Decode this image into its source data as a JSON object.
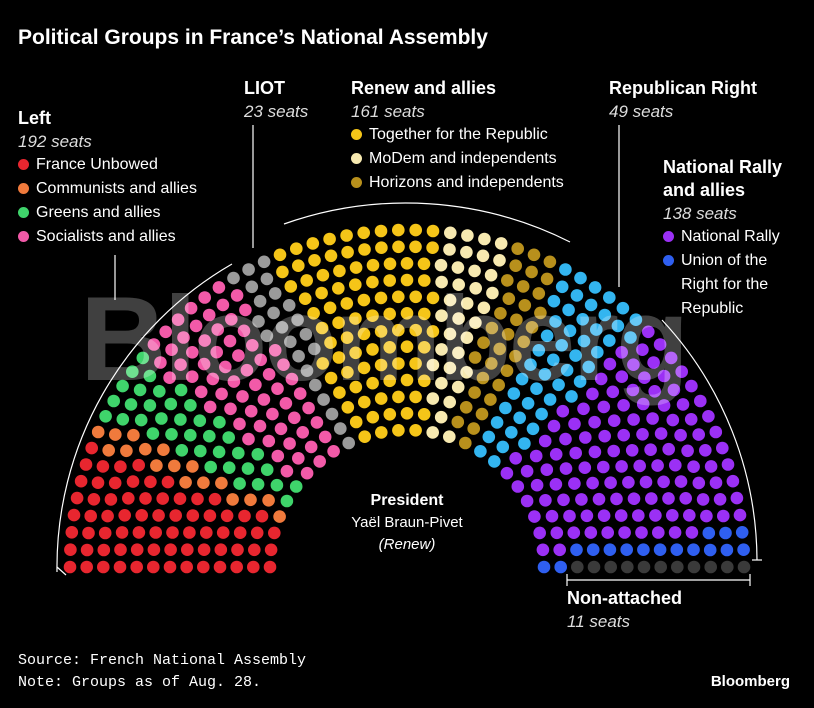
{
  "chart_data": {
    "type": "parliament",
    "title": "Political Groups in France’s National Assembly",
    "watermark": "Bloomberg",
    "groups": [
      {
        "name": "Left",
        "seats": 192,
        "seats_label": "192 seats",
        "subgroups": [
          {
            "name": "France Unbowed",
            "color": "#e8262f",
            "seats": 71
          },
          {
            "name": "Communists and allies",
            "color": "#f07a3c",
            "seats": 17
          },
          {
            "name": "Greens and allies",
            "color": "#3fd46b",
            "seats": 38
          },
          {
            "name": "Socialists and allies",
            "color": "#f25aa8",
            "seats": 66
          }
        ]
      },
      {
        "name": "LIOT",
        "seats": 23,
        "seats_label": "23 seats",
        "color": "#9a9a9a"
      },
      {
        "name": "Renew and allies",
        "seats": 161,
        "seats_label": "161 seats",
        "subgroups": [
          {
            "name": "Together for the Republic",
            "color": "#f5c518",
            "seats": 92
          },
          {
            "name": "MoDem and independents",
            "color": "#f7e9b0",
            "seats": 36
          },
          {
            "name": "Horizons and independents",
            "color": "#b8901c",
            "seats": 33
          }
        ]
      },
      {
        "name": "Republican Right",
        "seats": 49,
        "seats_label": "49 seats",
        "color": "#33b5f0"
      },
      {
        "name": "National Rally and allies",
        "seats": 138,
        "seats_label": "138 seats",
        "subgroups": [
          {
            "name": "National Rally",
            "color": "#9b30f5",
            "seats": 122
          },
          {
            "name": "Union of the Right for the Republic",
            "color": "#2f5ff0",
            "seats": 16
          }
        ]
      },
      {
        "name": "Non-attached",
        "seats": 11,
        "seats_label": "11 seats",
        "color": "#3a3a3a"
      }
    ],
    "president": {
      "title": "President",
      "name": "Yaël Braun-Pivet",
      "party": "(Renew)"
    },
    "source": "Source: French National Assembly",
    "note": "Note: Groups as of Aug. 28.",
    "brand": "Bloomberg"
  }
}
